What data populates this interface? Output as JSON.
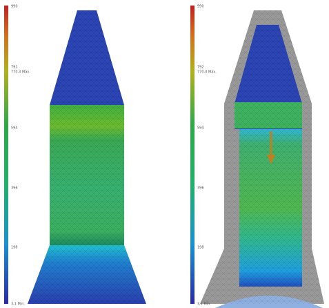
{
  "panels": [
    {
      "legend": {
        "labels": [
          "990",
          "792",
          "770,3 Máx.",
          "594",
          "396",
          "198",
          "3,1 Mín."
        ]
      }
    },
    {
      "legend": {
        "labels": [
          "990",
          "792",
          "770,3 Máx.",
          "594",
          "396",
          "198",
          "3,1 Mín."
        ]
      }
    }
  ]
}
